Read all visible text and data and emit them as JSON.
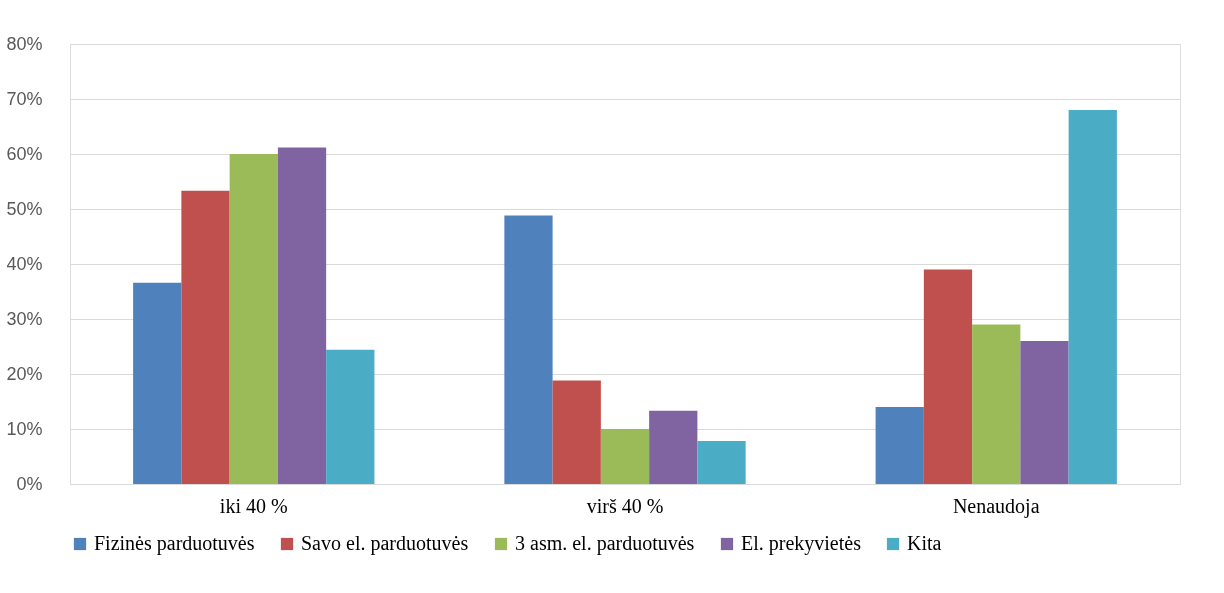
{
  "chart_data": {
    "type": "bar",
    "categories": [
      "iki 40 %",
      "virš 40 %",
      "Nenaudoja"
    ],
    "series": [
      {
        "name": "Fizinės parduotuvės",
        "color": "#4f81bd",
        "values": [
          36.6,
          48.8,
          14
        ]
      },
      {
        "name": "Savo el. parduotuvės",
        "color": "#c0504d",
        "values": [
          53.3,
          18.8,
          39
        ]
      },
      {
        "name": "3 asm. el. parduotuvės",
        "color": "#9bbb59",
        "values": [
          60,
          10,
          29
        ]
      },
      {
        "name": "El. prekyvietės",
        "color": "#8064a2",
        "values": [
          61.2,
          13.3,
          26
        ]
      },
      {
        "name": "Kita",
        "color": "#4bacc6",
        "values": [
          24.4,
          7.8,
          68
        ]
      }
    ],
    "ylim": [
      0,
      80
    ],
    "yticks": [
      {
        "value": 0,
        "label": "0%"
      },
      {
        "value": 10,
        "label": "10%"
      },
      {
        "value": 20,
        "label": "20%"
      },
      {
        "value": 30,
        "label": "30%"
      },
      {
        "value": 40,
        "label": "40%"
      },
      {
        "value": 50,
        "label": "50%"
      },
      {
        "value": 60,
        "label": "60%"
      },
      {
        "value": 70,
        "label": "70%"
      },
      {
        "value": 80,
        "label": "80%"
      }
    ],
    "grid": "y",
    "legend": "bottom"
  }
}
